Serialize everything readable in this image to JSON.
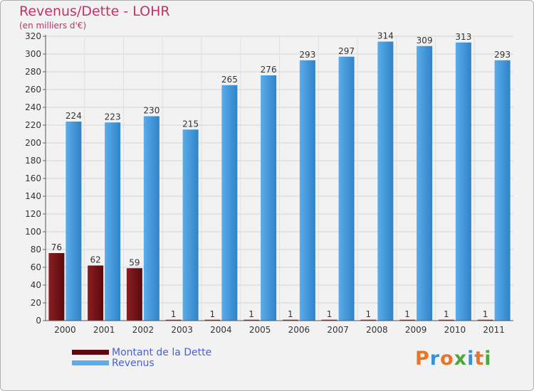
{
  "chart_data": {
    "type": "bar",
    "title": "Revenus/Dette - LOHR",
    "subtitle": "(en milliers d'€)",
    "categories": [
      "2000",
      "2001",
      "2002",
      "2003",
      "2004",
      "2005",
      "2006",
      "2007",
      "2008",
      "2009",
      "2010",
      "2011"
    ],
    "series": [
      {
        "name": "Montant de la Dette",
        "values": [
          76,
          62,
          59,
          1,
          1,
          1,
          1,
          1,
          1,
          1,
          1,
          1
        ]
      },
      {
        "name": "Revenus",
        "values": [
          224,
          223,
          230,
          215,
          265,
          276,
          293,
          297,
          314,
          309,
          313,
          293
        ]
      }
    ],
    "ylim": [
      0,
      320
    ],
    "yticks": [
      0,
      20,
      40,
      60,
      80,
      100,
      120,
      140,
      160,
      180,
      200,
      220,
      240,
      260,
      280,
      300,
      320
    ],
    "grid": true,
    "legend_position": "bottom-left"
  },
  "colors": {
    "dette_light": "#8a1e22",
    "dette_dark": "#5a0a0e",
    "revenus_light": "#5aacea",
    "revenus_dark": "#2f83c8",
    "title": "#c4306b",
    "legend_text": "#4a5fd6"
  },
  "logo": {
    "text": "Proxiti",
    "letters": [
      "P",
      "r",
      "o",
      "x",
      "i",
      "t",
      "i"
    ]
  }
}
